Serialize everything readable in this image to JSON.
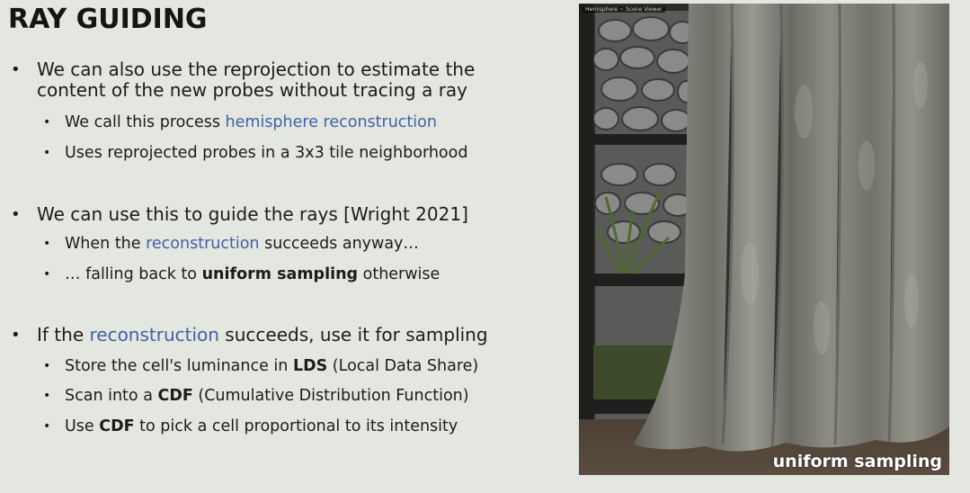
{
  "slide": {
    "title": "RAY GUIDING",
    "image_caption": "uniform sampling",
    "viewer_tab": "Hemisphere ~ Scene Viewer"
  },
  "bullets": [
    {
      "lines": [
        "We can also use the reprojection to estimate the",
        "content of the new probes without tracing a ray"
      ],
      "sub": [
        {
          "parts": [
            {
              "t": "We call this process "
            },
            {
              "t": "hemisphere reconstruction",
              "hl": true
            }
          ]
        },
        {
          "parts": [
            {
              "t": "Uses reprojected probes in a 3x3 tile neighborhood"
            }
          ]
        }
      ]
    },
    {
      "lines": [
        "We can use this to guide the rays [Wright 2021]"
      ],
      "sub": [
        {
          "parts": [
            {
              "t": "When the "
            },
            {
              "t": "reconstruction",
              "hl": true
            },
            {
              "t": " succeeds anyway…"
            }
          ]
        },
        {
          "parts": [
            {
              "t": "… falling back to "
            },
            {
              "t": "uniform sampling",
              "strong": true
            },
            {
              "t": " otherwise"
            }
          ]
        }
      ]
    },
    {
      "lines": [
        [
          {
            "t": "If the "
          },
          {
            "t": "reconstruction",
            "hl": true
          },
          {
            "t": " succeeds, use it for sampling"
          }
        ]
      ],
      "sub": [
        {
          "parts": [
            {
              "t": "Store the cell's luminance in "
            },
            {
              "t": "LDS",
              "strong": true
            },
            {
              "t": " (Local Data Share)"
            }
          ]
        },
        {
          "parts": [
            {
              "t": "Scan into a "
            },
            {
              "t": "CDF",
              "strong": true
            },
            {
              "t": " (Cumulative Distribution Function)"
            }
          ]
        },
        {
          "parts": [
            {
              "t": "Use "
            },
            {
              "t": "CDF",
              "strong": true
            },
            {
              "t": " to pick a cell proportional to its intensity"
            }
          ]
        }
      ]
    }
  ],
  "colors": {
    "background": "#e4e6e0",
    "highlight": "#3f63a6",
    "text": "#1c1c1c"
  }
}
